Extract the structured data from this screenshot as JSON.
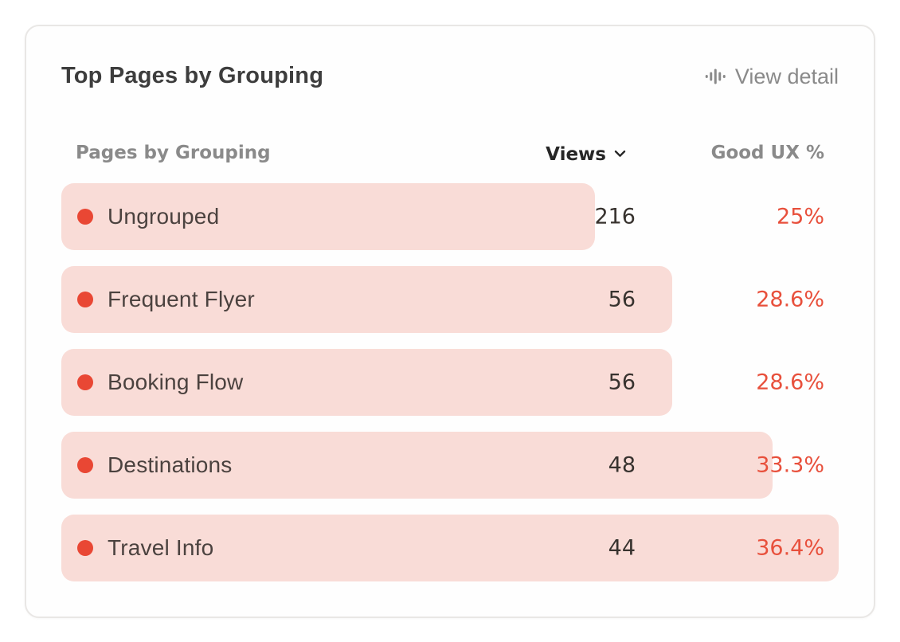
{
  "card": {
    "title": "Top Pages by Grouping",
    "view_detail_label": "View detail"
  },
  "table": {
    "headers": {
      "group": "Pages by Grouping",
      "views": "Views",
      "good_ux": "Good UX %"
    },
    "views_sort_icon": "chevron-down"
  },
  "rows": [
    {
      "label": "Ungrouped",
      "views": "216",
      "good_ux_pct": "25%",
      "good_ux_value": 25.0
    },
    {
      "label": "Frequent Flyer",
      "views": "56",
      "good_ux_pct": "28.6%",
      "good_ux_value": 28.6
    },
    {
      "label": "Booking Flow",
      "views": "56",
      "good_ux_pct": "28.6%",
      "good_ux_value": 28.6
    },
    {
      "label": "Destinations",
      "views": "48",
      "good_ux_pct": "33.3%",
      "good_ux_value": 33.3
    },
    {
      "label": "Travel Info",
      "views": "44",
      "good_ux_pct": "36.4%",
      "good_ux_value": 36.4
    }
  ],
  "colors": {
    "dot_red": "#e94734",
    "bar_pink": "#f9dcd7",
    "percent_red": "#e8503c",
    "title_text": "#3d3d3d",
    "header_gray": "#8a8a8a",
    "label_text": "#4b423f",
    "views_text": "#38332f",
    "card_border": "#e9e7e5"
  },
  "chart_data": {
    "type": "bar",
    "orientation": "horizontal",
    "title": "Top Pages by Grouping",
    "categories": [
      "Ungrouped",
      "Frequent Flyer",
      "Booking Flow",
      "Destinations",
      "Travel Info"
    ],
    "series": [
      {
        "name": "Views",
        "values": [
          216,
          56,
          56,
          48,
          44
        ]
      },
      {
        "name": "Good UX %",
        "values": [
          25.0,
          28.6,
          28.6,
          33.3,
          36.4
        ]
      }
    ],
    "bar_length_encodes": "Good UX %",
    "bar_range": [
      0,
      36.4
    ],
    "legend": "none",
    "grid": "off"
  }
}
